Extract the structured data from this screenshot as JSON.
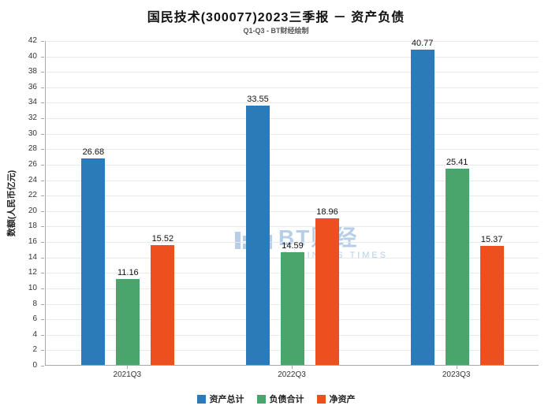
{
  "title": "国民技术(300077)2023三季报 － 资产负债",
  "subtitle": "Q1-Q3 - BT财经绘制",
  "watermark": {
    "text": "BT财经",
    "sub": "BUSINESS TIMES"
  },
  "chart_data": {
    "type": "bar",
    "title": "国民技术(300077)2023三季报 － 资产负债",
    "subtitle": "Q1-Q3 - BT财经绘制",
    "categories": [
      "2021Q3",
      "2022Q3",
      "2023Q3"
    ],
    "series": [
      {
        "name": "资产总计",
        "color": "#2b7bb9",
        "values": [
          26.68,
          33.55,
          40.77
        ]
      },
      {
        "name": "负债合计",
        "color": "#4aa56c",
        "values": [
          11.16,
          14.59,
          25.41
        ]
      },
      {
        "name": "净资产",
        "color": "#ee4f1f",
        "values": [
          15.52,
          18.96,
          15.37
        ]
      }
    ],
    "xlabel": "",
    "ylabel": "数额(人民币亿元)",
    "ylim": [
      0,
      42
    ],
    "ytick_step": 2,
    "grid": true,
    "legend_position": "bottom"
  }
}
